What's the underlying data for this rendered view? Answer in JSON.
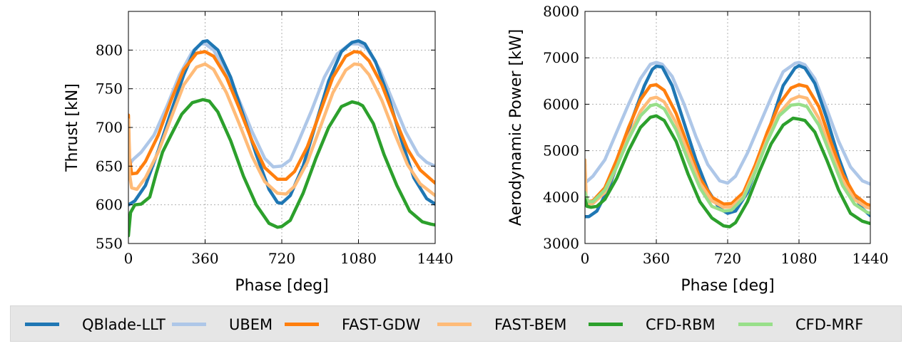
{
  "chart_data": [
    {
      "type": "line",
      "xlabel": "Phase [deg]",
      "ylabel": "Thrust [kN]",
      "xlim": [
        0,
        1440
      ],
      "ylim": [
        550,
        850
      ],
      "xticks": [
        "0",
        "360",
        "720",
        "1080",
        "1440"
      ],
      "yticks": [
        "550",
        "600",
        "650",
        "700",
        "750",
        "800"
      ],
      "grid": true,
      "series": [
        {
          "name": "UBEM",
          "color": "#aec7e8",
          "x": [
            0,
            20,
            60,
            120,
            180,
            240,
            300,
            340,
            360,
            400,
            460,
            520,
            580,
            640,
            680,
            720,
            760,
            800,
            860,
            920,
            980,
            1040,
            1080,
            1120,
            1180,
            1240,
            1300,
            1360,
            1400,
            1440
          ],
          "y": [
            650,
            658,
            668,
            690,
            727,
            768,
            798,
            808,
            808,
            800,
            770,
            735,
            695,
            660,
            649,
            650,
            658,
            683,
            722,
            765,
            795,
            808,
            808,
            802,
            775,
            735,
            695,
            665,
            655,
            650
          ]
        },
        {
          "name": "QBlade-LLT",
          "color": "#1f77b4",
          "x": [
            0,
            30,
            80,
            140,
            200,
            260,
            310,
            350,
            370,
            420,
            480,
            540,
            600,
            660,
            700,
            720,
            760,
            820,
            880,
            940,
            1000,
            1050,
            1080,
            1110,
            1160,
            1220,
            1280,
            1340,
            1400,
            1440
          ],
          "y": [
            600,
            605,
            625,
            670,
            720,
            768,
            800,
            811,
            812,
            800,
            765,
            715,
            665,
            620,
            603,
            602,
            612,
            650,
            705,
            760,
            798,
            810,
            812,
            808,
            785,
            740,
            685,
            635,
            608,
            601
          ]
        },
        {
          "name": "FAST-GDW",
          "color": "#ff7f0e",
          "x": [
            0,
            5,
            15,
            40,
            80,
            140,
            200,
            260,
            320,
            360,
            400,
            460,
            520,
            580,
            640,
            700,
            740,
            780,
            840,
            900,
            960,
            1020,
            1060,
            1090,
            1130,
            1190,
            1250,
            1310,
            1370,
            1440
          ],
          "y": [
            716,
            660,
            640,
            641,
            656,
            690,
            735,
            775,
            796,
            798,
            792,
            765,
            725,
            683,
            648,
            633,
            633,
            643,
            675,
            720,
            765,
            792,
            798,
            797,
            786,
            755,
            712,
            672,
            645,
            628
          ]
        },
        {
          "name": "FAST-BEM",
          "color": "#ffbb78",
          "x": [
            0,
            5,
            15,
            40,
            80,
            140,
            200,
            260,
            320,
            360,
            400,
            460,
            520,
            580,
            640,
            700,
            740,
            780,
            840,
            900,
            960,
            1020,
            1060,
            1090,
            1130,
            1190,
            1250,
            1310,
            1370,
            1440
          ],
          "y": [
            710,
            640,
            622,
            620,
            635,
            668,
            712,
            755,
            778,
            782,
            775,
            745,
            705,
            663,
            630,
            615,
            614,
            624,
            655,
            700,
            745,
            774,
            782,
            781,
            768,
            735,
            692,
            652,
            627,
            612
          ]
        },
        {
          "name": "CFD-RBM",
          "color": "#2ca02c",
          "x": [
            0,
            10,
            30,
            60,
            100,
            130,
            160,
            200,
            250,
            300,
            350,
            380,
            420,
            480,
            540,
            600,
            660,
            700,
            720,
            760,
            820,
            880,
            940,
            1000,
            1050,
            1080,
            1100,
            1150,
            1200,
            1260,
            1320,
            1380,
            1420,
            1440
          ],
          "y": [
            560,
            590,
            600,
            601,
            610,
            640,
            668,
            690,
            717,
            732,
            736,
            734,
            720,
            683,
            637,
            600,
            576,
            571,
            572,
            580,
            615,
            660,
            700,
            727,
            733,
            731,
            728,
            705,
            665,
            625,
            592,
            578,
            575,
            574
          ]
        }
      ]
    },
    {
      "type": "line",
      "xlabel": "Phase [deg]",
      "ylabel": "Aerodynamic Power [kW]",
      "xlim": [
        0,
        1440
      ],
      "ylim": [
        3000,
        8000
      ],
      "xticks": [
        "0",
        "360",
        "720",
        "1080",
        "1440"
      ],
      "yticks": [
        "3000",
        "4000",
        "5000",
        "6000",
        "7000",
        "8000"
      ],
      "grid": true,
      "series": [
        {
          "name": "UBEM",
          "color": "#aec7e8",
          "x": [
            0,
            40,
            100,
            160,
            220,
            280,
            330,
            360,
            390,
            440,
            500,
            560,
            620,
            680,
            720,
            760,
            820,
            880,
            940,
            1000,
            1060,
            1080,
            1110,
            1160,
            1220,
            1280,
            1340,
            1400,
            1440
          ],
          "y": [
            4300,
            4450,
            4800,
            5400,
            6000,
            6550,
            6860,
            6900,
            6860,
            6600,
            6000,
            5300,
            4700,
            4350,
            4300,
            4450,
            4950,
            5550,
            6150,
            6700,
            6880,
            6900,
            6850,
            6550,
            5900,
            5200,
            4650,
            4350,
            4280
          ]
        },
        {
          "name": "QBlade-LLT",
          "color": "#1f77b4",
          "x": [
            0,
            20,
            60,
            120,
            180,
            240,
            300,
            340,
            360,
            390,
            440,
            500,
            560,
            620,
            680,
            720,
            760,
            820,
            880,
            940,
            1000,
            1060,
            1080,
            1110,
            1160,
            1220,
            1280,
            1340,
            1400,
            1440
          ],
          "y": [
            3580,
            3580,
            3700,
            4200,
            4900,
            5700,
            6400,
            6750,
            6820,
            6800,
            6400,
            5600,
            4800,
            4150,
            3750,
            3650,
            3700,
            4100,
            4800,
            5600,
            6400,
            6780,
            6830,
            6780,
            6450,
            5700,
            4850,
            4150,
            3750,
            3600
          ]
        },
        {
          "name": "FAST-GDW",
          "color": "#ff7f0e",
          "x": [
            0,
            5,
            15,
            40,
            100,
            160,
            220,
            280,
            330,
            360,
            400,
            460,
            520,
            580,
            640,
            700,
            740,
            800,
            860,
            920,
            980,
            1040,
            1080,
            1120,
            1180,
            1240,
            1300,
            1360,
            1420,
            1440
          ],
          "y": [
            4700,
            4000,
            3900,
            3920,
            4200,
            4800,
            5500,
            6100,
            6400,
            6420,
            6300,
            5800,
            5100,
            4400,
            4000,
            3850,
            3860,
            4100,
            4700,
            5400,
            6000,
            6350,
            6420,
            6380,
            5950,
            5200,
            4500,
            4050,
            3850,
            3820
          ]
        },
        {
          "name": "FAST-BEM",
          "color": "#ffbb78",
          "x": [
            0,
            5,
            15,
            40,
            100,
            160,
            220,
            280,
            330,
            360,
            400,
            460,
            520,
            580,
            640,
            700,
            740,
            800,
            860,
            920,
            980,
            1040,
            1080,
            1120,
            1180,
            1240,
            1300,
            1360,
            1420,
            1440
          ],
          "y": [
            4800,
            3950,
            3850,
            3860,
            4100,
            4650,
            5300,
            5850,
            6120,
            6150,
            6050,
            5600,
            4950,
            4300,
            3920,
            3780,
            3790,
            4020,
            4600,
            5250,
            5800,
            6100,
            6170,
            6130,
            5700,
            5000,
            4350,
            3950,
            3780,
            3760
          ]
        },
        {
          "name": "CFD-MRF",
          "color": "#98df8a",
          "x": [
            0,
            15,
            40,
            100,
            160,
            220,
            280,
            330,
            360,
            400,
            460,
            520,
            580,
            640,
            700,
            740,
            800,
            860,
            920,
            980,
            1040,
            1080,
            1120,
            1180,
            1240,
            1300,
            1360,
            1420,
            1440
          ],
          "y": [
            4100,
            3900,
            3900,
            4150,
            4650,
            5250,
            5750,
            5970,
            6000,
            5900,
            5450,
            4800,
            4200,
            3800,
            3700,
            3720,
            3980,
            4550,
            5200,
            5750,
            5980,
            6000,
            5950,
            5550,
            4900,
            4250,
            3850,
            3680,
            3650
          ]
        },
        {
          "name": "CFD-RBM",
          "color": "#2ca02c",
          "x": [
            0,
            10,
            30,
            60,
            100,
            160,
            220,
            280,
            330,
            360,
            400,
            460,
            520,
            580,
            640,
            700,
            730,
            760,
            820,
            880,
            940,
            1000,
            1050,
            1080,
            1110,
            1160,
            1220,
            1280,
            1340,
            1400,
            1440
          ],
          "y": [
            3950,
            3800,
            3780,
            3800,
            3950,
            4400,
            5000,
            5500,
            5720,
            5750,
            5650,
            5200,
            4500,
            3900,
            3550,
            3380,
            3360,
            3450,
            3900,
            4550,
            5150,
            5550,
            5700,
            5680,
            5650,
            5400,
            4800,
            4150,
            3650,
            3480,
            3430
          ]
        }
      ]
    }
  ],
  "legend": {
    "placement": "bottom",
    "items": [
      {
        "label": "QBlade-LLT",
        "color": "#1f77b4"
      },
      {
        "label": "UBEM",
        "color": "#aec7e8"
      },
      {
        "label": "FAST-GDW",
        "color": "#ff7f0e"
      },
      {
        "label": "FAST-BEM",
        "color": "#ffbb78"
      },
      {
        "label": "CFD-RBM",
        "color": "#2ca02c"
      },
      {
        "label": "CFD-MRF",
        "color": "#98df8a"
      }
    ]
  }
}
